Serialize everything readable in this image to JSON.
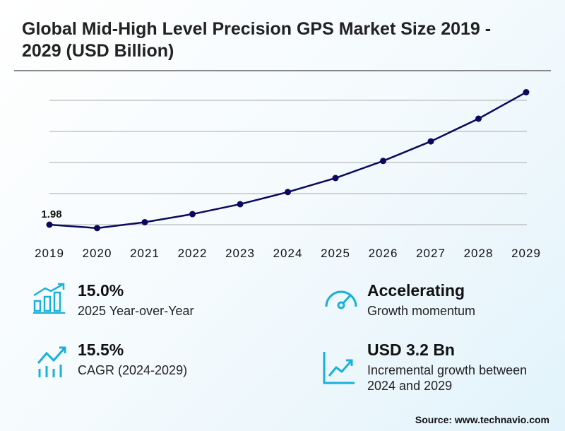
{
  "title": "Global Mid-High Level Precision GPS Market Size 2019 - 2029 (USD Billion)",
  "chart_data": {
    "type": "line",
    "title": "Global Mid-High Level Precision GPS Market Size 2019 - 2029 (USD Billion)",
    "categories": [
      "2019",
      "2020",
      "2021",
      "2022",
      "2023",
      "2024",
      "2025",
      "2026",
      "2027",
      "2028",
      "2029"
    ],
    "values": [
      1.98,
      1.87,
      2.06,
      2.32,
      2.64,
      3.03,
      3.48,
      4.03,
      4.66,
      5.39,
      6.24
    ],
    "data_labels": {
      "2019": "1.98"
    },
    "ylim": [
      1.98,
      6.3
    ],
    "gridlines": [
      1.98,
      2.98,
      3.98,
      4.98,
      5.98
    ],
    "grid": true,
    "line_color": "#0a0a5c"
  },
  "stats": [
    {
      "value": "15.0%",
      "label": "2025 Year-over-Year",
      "icon": "bar-chart-growth-icon"
    },
    {
      "value": "Accelerating",
      "label": "Growth momentum",
      "icon": "speedometer-icon"
    },
    {
      "value": "15.5%",
      "label": "CAGR (2024-2029)",
      "icon": "trend-up-bars-icon"
    },
    {
      "value": "USD 3.2 Bn",
      "label": "Incremental growth between 2024 and 2029",
      "icon": "line-chart-up-icon"
    }
  ],
  "accent": "#1ab0d8",
  "source": "Source: www.technavio.com"
}
